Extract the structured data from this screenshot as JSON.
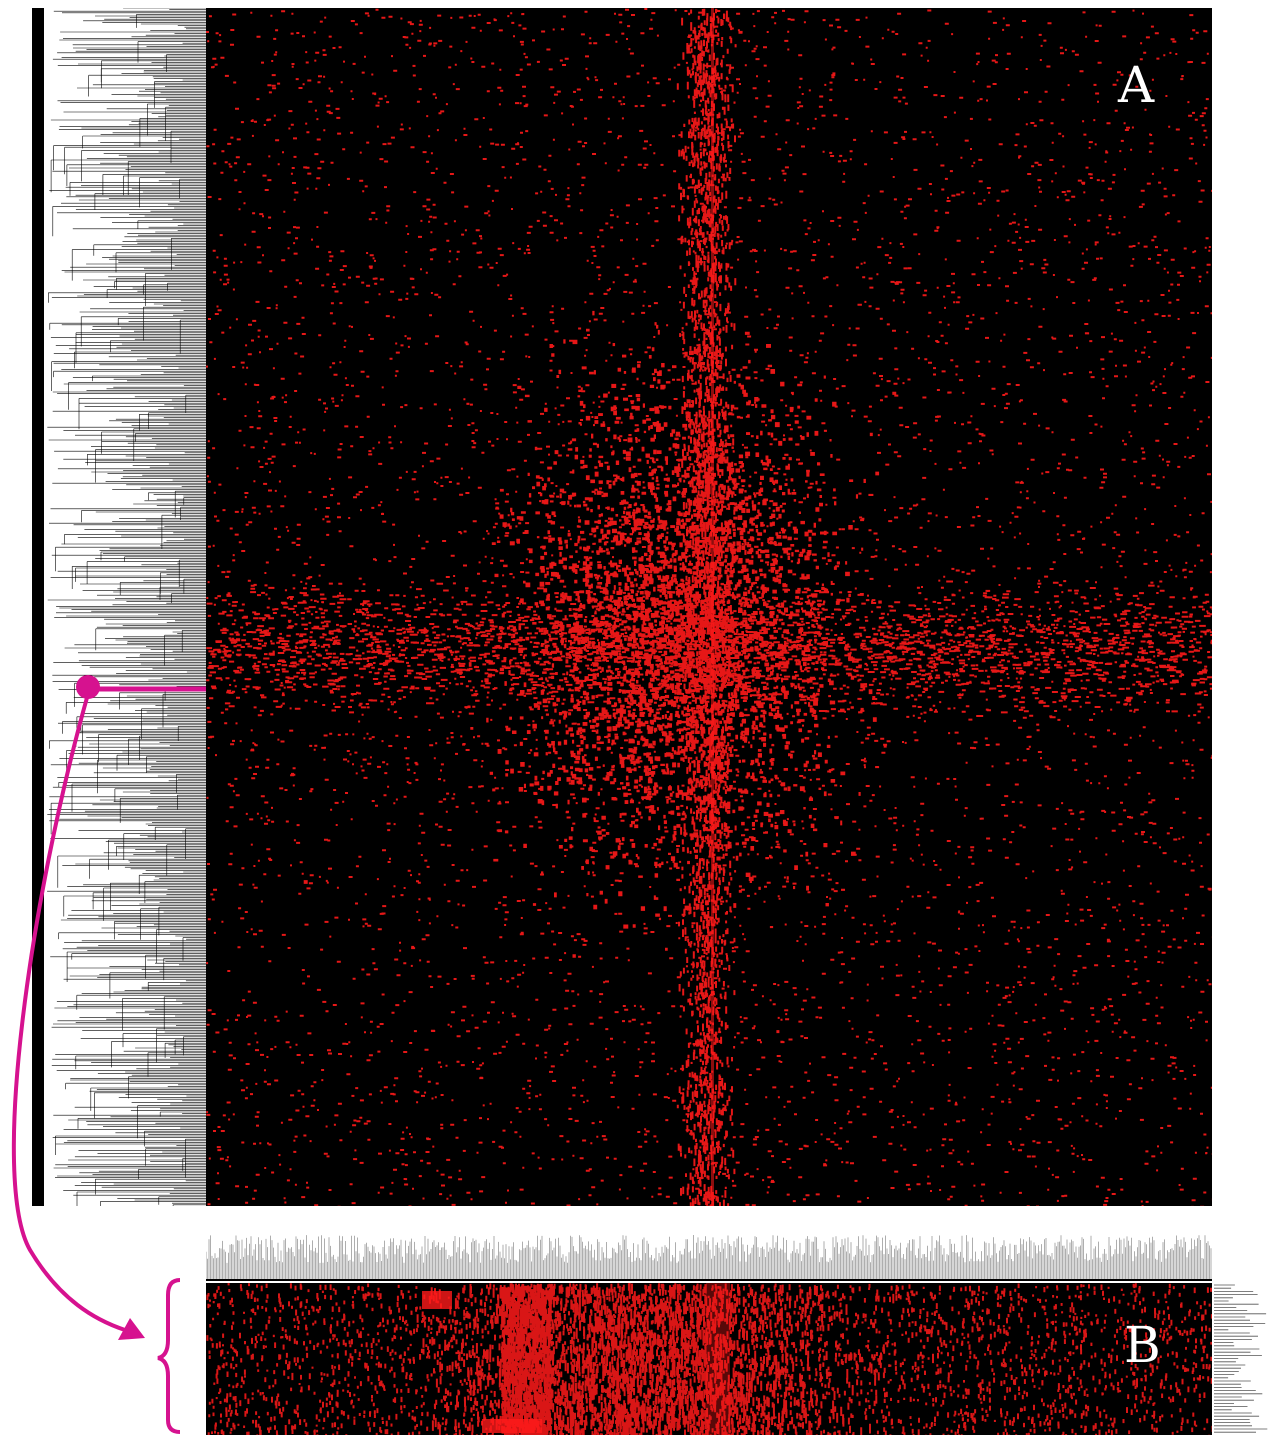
{
  "panels": {
    "a": {
      "label": "A"
    },
    "b": {
      "label": "B"
    }
  },
  "colors": {
    "heat_high": "#ff1a1a",
    "background": "#000000",
    "dendrogram": "#000000",
    "highlight": "#d6128f",
    "column_tree": "#9a9a9a"
  },
  "icons": {
    "connector": "curved-arrow",
    "bracket": "curly-brace"
  }
}
